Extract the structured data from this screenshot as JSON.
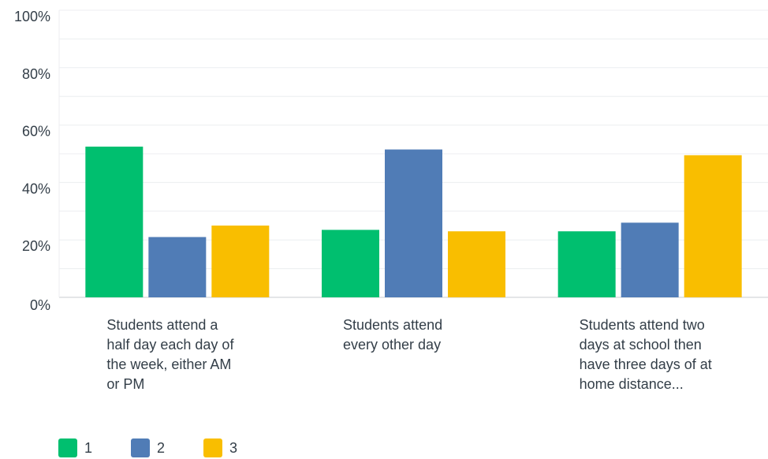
{
  "chart_data": {
    "type": "bar",
    "categories": [
      "Students attend a half day each day of the week, either AM or PM",
      "Students attend every other day",
      "Students attend two days at school then have three days of at home distance..."
    ],
    "category_lines": [
      [
        "Students attend a",
        "half day each day of",
        "the week, either AM",
        "or PM"
      ],
      [
        "Students attend",
        "every other day"
      ],
      [
        "Students attend two",
        "days at school then",
        "have three days of at",
        "home distance..."
      ]
    ],
    "series": [
      {
        "name": "1",
        "color": "#00bf6f",
        "values": [
          52.5,
          23.5,
          23.0
        ]
      },
      {
        "name": "2",
        "color": "#507cb6",
        "values": [
          21.0,
          51.5,
          26.0
        ]
      },
      {
        "name": "3",
        "color": "#f9be00",
        "values": [
          25.0,
          23.0,
          49.5
        ]
      }
    ],
    "yticks": [
      "0%",
      "20%",
      "40%",
      "60%",
      "80%",
      "100%"
    ],
    "ylim": [
      0,
      100
    ],
    "grid": true,
    "legend_position": "bottom-left"
  }
}
